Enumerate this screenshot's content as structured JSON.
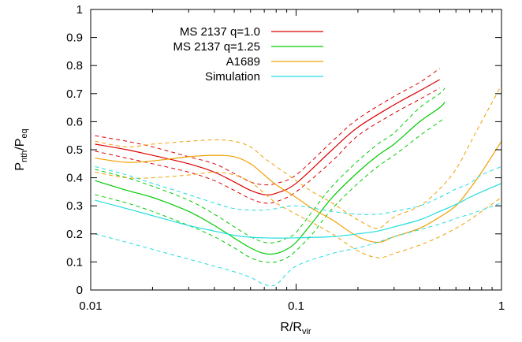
{
  "chart_data": {
    "type": "line",
    "title": "",
    "xlabel": {
      "main": "R/R",
      "sub": "vir"
    },
    "ylabel": {
      "main": "P",
      "sub1": "nth",
      "mid": "/P",
      "sub2": "eq"
    },
    "x_scale": "log",
    "xlim": [
      0.01,
      1
    ],
    "ylim": [
      0,
      1
    ],
    "x_ticks": [
      {
        "value": 0.01,
        "label": "0.01"
      },
      {
        "value": 0.1,
        "label": "0.1"
      },
      {
        "value": 1,
        "label": "1"
      }
    ],
    "y_ticks": [
      {
        "value": 0,
        "label": "0"
      },
      {
        "value": 0.1,
        "label": "0.1"
      },
      {
        "value": 0.2,
        "label": "0.2"
      },
      {
        "value": 0.3,
        "label": "0.3"
      },
      {
        "value": 0.4,
        "label": "0.4"
      },
      {
        "value": 0.5,
        "label": "0.5"
      },
      {
        "value": 0.6,
        "label": "0.6"
      },
      {
        "value": 0.7,
        "label": "0.7"
      },
      {
        "value": 0.8,
        "label": "0.8"
      },
      {
        "value": 0.9,
        "label": "0.9"
      },
      {
        "value": 1,
        "label": "1"
      }
    ],
    "grid": false,
    "legend_position": "top-left",
    "series": [
      {
        "name": "MS 2137 q=1.0",
        "color": "#dd0000",
        "x": [
          0.0105,
          0.015,
          0.02,
          0.03,
          0.04,
          0.05,
          0.06,
          0.07,
          0.08,
          0.1,
          0.15,
          0.2,
          0.3,
          0.4,
          0.5
        ],
        "y": [
          0.52,
          0.5,
          0.48,
          0.45,
          0.42,
          0.385,
          0.355,
          0.34,
          0.345,
          0.38,
          0.5,
          0.58,
          0.66,
          0.71,
          0.75
        ],
        "lower": [
          0.495,
          0.47,
          0.45,
          0.42,
          0.39,
          0.355,
          0.325,
          0.31,
          0.315,
          0.35,
          0.46,
          0.55,
          0.63,
          0.68,
          0.72
        ],
        "upper": [
          0.55,
          0.53,
          0.51,
          0.475,
          0.45,
          0.415,
          0.385,
          0.375,
          0.38,
          0.41,
          0.53,
          0.61,
          0.69,
          0.74,
          0.79
        ]
      },
      {
        "name": "MS 2137 q=1.25",
        "color": "#00cc00",
        "x": [
          0.0105,
          0.015,
          0.02,
          0.03,
          0.04,
          0.05,
          0.06,
          0.07,
          0.08,
          0.09,
          0.1,
          0.12,
          0.15,
          0.2,
          0.25,
          0.3,
          0.4,
          0.5,
          0.53
        ],
        "y": [
          0.39,
          0.355,
          0.33,
          0.28,
          0.23,
          0.185,
          0.15,
          0.13,
          0.13,
          0.145,
          0.17,
          0.24,
          0.33,
          0.42,
          0.48,
          0.52,
          0.6,
          0.65,
          0.67
        ],
        "lower": [
          0.34,
          0.31,
          0.28,
          0.23,
          0.19,
          0.15,
          0.115,
          0.1,
          0.1,
          0.115,
          0.14,
          0.2,
          0.29,
          0.38,
          0.44,
          0.48,
          0.55,
          0.6,
          0.615
        ],
        "upper": [
          0.43,
          0.4,
          0.37,
          0.32,
          0.27,
          0.225,
          0.19,
          0.17,
          0.17,
          0.185,
          0.205,
          0.28,
          0.37,
          0.46,
          0.52,
          0.56,
          0.65,
          0.7,
          0.72
        ]
      },
      {
        "name": "A1689",
        "color": "#f0a000",
        "x": [
          0.0105,
          0.015,
          0.02,
          0.03,
          0.04,
          0.05,
          0.06,
          0.07,
          0.08,
          0.1,
          0.12,
          0.15,
          0.2,
          0.25,
          0.3,
          0.4,
          0.5,
          0.6,
          0.7,
          0.8,
          1.0
        ],
        "y": [
          0.47,
          0.455,
          0.46,
          0.475,
          0.48,
          0.475,
          0.45,
          0.41,
          0.375,
          0.33,
          0.29,
          0.25,
          0.19,
          0.17,
          0.19,
          0.22,
          0.26,
          0.3,
          0.36,
          0.42,
          0.53
        ],
        "lower": [
          0.42,
          0.4,
          0.4,
          0.41,
          0.42,
          0.41,
          0.385,
          0.345,
          0.31,
          0.27,
          0.24,
          0.2,
          0.14,
          0.115,
          0.13,
          0.16,
          0.19,
          0.22,
          0.25,
          0.28,
          0.33
        ],
        "upper": [
          0.53,
          0.51,
          0.52,
          0.53,
          0.535,
          0.53,
          0.51,
          0.47,
          0.44,
          0.39,
          0.35,
          0.31,
          0.25,
          0.22,
          0.26,
          0.3,
          0.36,
          0.43,
          0.52,
          0.6,
          0.73
        ]
      },
      {
        "name": "Simulation",
        "color": "#22dddd",
        "x": [
          0.0105,
          0.015,
          0.02,
          0.03,
          0.04,
          0.05,
          0.06,
          0.07,
          0.08,
          0.1,
          0.15,
          0.2,
          0.25,
          0.3,
          0.4,
          0.5,
          0.6,
          0.7,
          0.8,
          1.0
        ],
        "y": [
          0.32,
          0.29,
          0.265,
          0.23,
          0.21,
          0.195,
          0.188,
          0.186,
          0.185,
          0.186,
          0.19,
          0.2,
          0.21,
          0.225,
          0.25,
          0.28,
          0.305,
          0.33,
          0.35,
          0.38
        ],
        "lower": [
          0.2,
          0.17,
          0.145,
          0.11,
          0.085,
          0.065,
          0.045,
          0.02,
          0.02,
          0.085,
          0.13,
          0.15,
          0.17,
          0.19,
          0.215,
          0.235,
          0.255,
          0.27,
          0.285,
          0.31
        ],
        "upper": [
          0.44,
          0.41,
          0.38,
          0.34,
          0.31,
          0.29,
          0.285,
          0.285,
          0.29,
          0.3,
          0.28,
          0.27,
          0.27,
          0.28,
          0.3,
          0.33,
          0.36,
          0.38,
          0.41,
          0.44
        ]
      }
    ]
  }
}
